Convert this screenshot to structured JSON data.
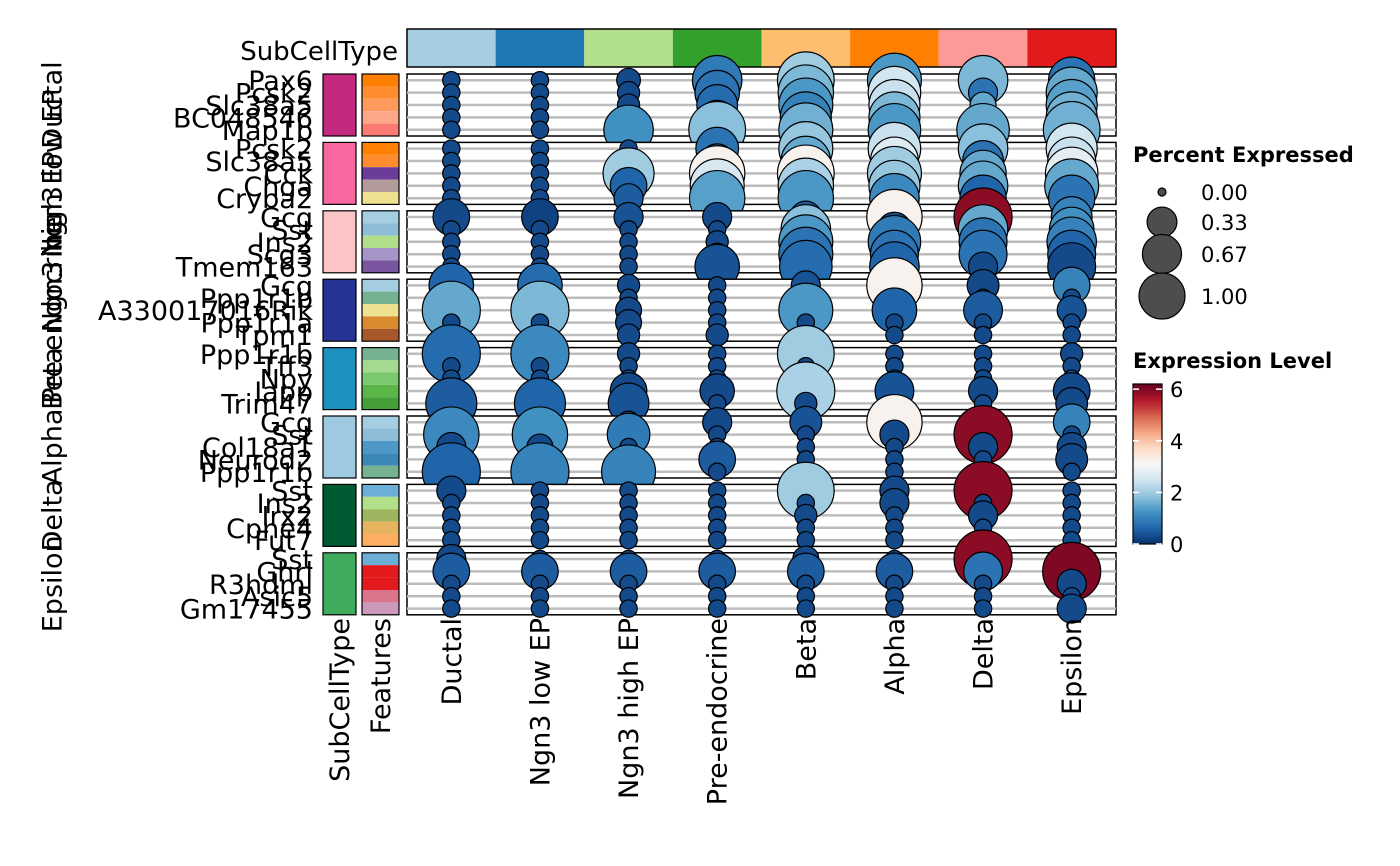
{
  "chart_data": {
    "type": "dotplot",
    "title": "",
    "xlabel": "",
    "ylabel": "",
    "top_annotation": {
      "label": "SubCellType",
      "colors": [
        "#A6CEE3",
        "#1F78B4",
        "#B2DF8A",
        "#33A02C",
        "#FDBF6F",
        "#FF7F00",
        "#FB9A99",
        "#E31A1C"
      ]
    },
    "columns": [
      "Ductal",
      "Ngn3 low EP",
      "Ngn3 high EP",
      "Pre-endocrine",
      "Beta",
      "Alpha",
      "Delta",
      "Epsilon"
    ],
    "left_annotations": {
      "labels": [
        "SubCellType",
        "Features"
      ]
    },
    "groups": [
      {
        "name": "Ductal",
        "color": "#C2297F",
        "features": [
          "Pax6",
          "Pcsk2",
          "Slc38a5",
          "BC048546",
          "Map1b"
        ],
        "feature_colors": [
          "#FF7F00",
          "#FF8C2E",
          "#FF9A5C",
          "#FCA68A",
          "#FB7B72"
        ],
        "pct": [
          [
            0.05,
            0.05,
            0.12,
            0.7,
            0.95,
            0.85,
            0.7,
            0.6
          ],
          [
            0.05,
            0.05,
            0.1,
            0.55,
            0.9,
            0.8,
            0.2,
            0.75
          ],
          [
            0.05,
            0.05,
            0.1,
            0.45,
            0.85,
            0.75,
            0.15,
            0.75
          ],
          [
            0.05,
            0.05,
            0.1,
            0.3,
            0.75,
            0.75,
            0.15,
            0.75
          ],
          [
            0.05,
            0.05,
            0.7,
            0.95,
            0.85,
            0.8,
            0.8,
            0.95
          ]
        ],
        "expr": [
          [
            0.3,
            0.3,
            0.3,
            0.9,
            2.0,
            1.3,
            1.7,
            0.8
          ],
          [
            0.3,
            0.3,
            0.3,
            0.8,
            1.7,
            2.5,
            0.8,
            1.5
          ],
          [
            0.3,
            0.3,
            0.3,
            0.7,
            1.3,
            2.4,
            1.5,
            1.4
          ],
          [
            0.3,
            0.3,
            0.3,
            0.4,
            1.0,
            1.7,
            1.4,
            1.6
          ],
          [
            0.3,
            0.3,
            1.2,
            1.8,
            1.6,
            1.3,
            1.5,
            1.6
          ]
        ]
      },
      {
        "name": "Ngn3 low EP",
        "color": "#F768A1",
        "features": [
          "Pcsk2",
          "Slc38a5",
          "Cck",
          "Chga",
          "Cryba2"
        ],
        "feature_colors": [
          "#FF7F00",
          "#FF8C2E",
          "#6A3D9A",
          "#B39B9B",
          "#EEE290"
        ],
        "pct": [
          [
            0.05,
            0.05,
            0.05,
            0.5,
            0.85,
            0.8,
            0.7,
            0.75
          ],
          [
            0.05,
            0.05,
            0.05,
            0.3,
            0.7,
            0.65,
            0.45,
            0.65
          ],
          [
            0.05,
            0.05,
            0.75,
            0.9,
            0.95,
            0.85,
            0.6,
            0.8
          ],
          [
            0.05,
            0.05,
            0.35,
            0.85,
            0.9,
            0.75,
            0.7,
            0.85
          ],
          [
            0.05,
            0.05,
            0.2,
            0.9,
            0.9,
            0.7,
            0.6,
            0.6
          ]
        ],
        "expr": [
          [
            0.3,
            0.3,
            0.3,
            0.8,
            1.9,
            2.4,
            1.8,
            2.5
          ],
          [
            0.3,
            0.3,
            0.3,
            0.6,
            1.5,
            2.7,
            0.8,
            2.4
          ],
          [
            0.3,
            0.3,
            2.0,
            3.2,
            3.2,
            2.0,
            1.5,
            2.8
          ],
          [
            0.3,
            0.3,
            0.6,
            2.6,
            2.1,
            1.9,
            1.5,
            1.5
          ],
          [
            0.3,
            0.3,
            0.5,
            1.4,
            1.3,
            1.1,
            0.6,
            0.8
          ]
        ]
      },
      {
        "name": "Ngn3 high EP",
        "color": "#FBC5C5",
        "features": [
          "Gcg",
          "Sst",
          "Ins2",
          "Scg3",
          "Tmem163"
        ],
        "feature_colors": [
          "#A6CEE3",
          "#8FBCD6",
          "#B2DF8A",
          "#A595C9",
          "#7A55A0"
        ],
        "pct": [
          [
            0.35,
            0.35,
            0.2,
            0.2,
            0.25,
            0.9,
            1.0,
            0.45
          ],
          [
            0.05,
            0.05,
            0.05,
            0.05,
            0.7,
            0.3,
            0.7,
            0.55
          ],
          [
            0.05,
            0.05,
            0.05,
            0.1,
            0.85,
            0.8,
            0.65,
            0.7
          ],
          [
            0.05,
            0.05,
            0.05,
            0.1,
            0.85,
            0.65,
            0.65,
            0.65
          ],
          [
            0.05,
            0.05,
            0.05,
            0.55,
            0.8,
            0.7,
            0.2,
            0.65
          ]
        ],
        "expr": [
          [
            0.3,
            0.2,
            0.4,
            0.3,
            0.5,
            3.2,
            5.9,
            1.0
          ],
          [
            0.3,
            0.3,
            0.3,
            0.3,
            1.8,
            0.3,
            1.5,
            1.2
          ],
          [
            0.3,
            0.3,
            0.3,
            0.3,
            1.3,
            0.9,
            0.8,
            1.0
          ],
          [
            0.3,
            0.3,
            0.3,
            0.3,
            0.8,
            0.8,
            0.8,
            0.6
          ],
          [
            0.3,
            0.3,
            0.3,
            0.4,
            0.7,
            0.6,
            0.3,
            0.3
          ]
        ]
      },
      {
        "name": "Pre-endocrine",
        "color": "#253494",
        "features": [
          "Gcg",
          "Ppp1r1b",
          "A330017016Rik",
          "Ppp1r1a",
          "Tpm1"
        ],
        "feature_colors": [
          "#A6CEE3",
          "#76B28F",
          "#EEE290",
          "#D98A2E",
          "#A6582A"
        ],
        "pct": [
          [
            0.55,
            0.55,
            0.1,
            0.05,
            0.2,
            0.9,
            0.25,
            0.35
          ],
          [
            0.05,
            0.05,
            0.05,
            0.05,
            0.05,
            0.05,
            0.05,
            0.05
          ],
          [
            1.0,
            1.0,
            0.15,
            0.05,
            0.85,
            0.55,
            0.4,
            0.2
          ],
          [
            0.05,
            0.05,
            0.15,
            0.05,
            0.05,
            0.05,
            0.05,
            0.05
          ],
          [
            0.05,
            0.05,
            0.1,
            0.1,
            0.05,
            0.05,
            0.05,
            0.05
          ]
        ],
        "expr": [
          [
            0.6,
            0.7,
            0.3,
            0.3,
            0.4,
            3.2,
            0.3,
            1.0
          ],
          [
            0.3,
            0.3,
            0.3,
            0.3,
            0.3,
            0.3,
            0.3,
            0.3
          ],
          [
            1.5,
            1.7,
            0.3,
            0.3,
            1.3,
            0.6,
            0.5,
            0.4
          ],
          [
            0.3,
            0.3,
            0.3,
            0.3,
            0.3,
            0.3,
            0.3,
            0.3
          ],
          [
            0.3,
            0.3,
            0.3,
            0.3,
            0.3,
            0.3,
            0.3,
            0.3
          ]
        ]
      },
      {
        "name": "Beta",
        "color": "#1D91C0",
        "features": [
          "Ppp1r1b",
          "Tff3",
          "Npy",
          "Iapp",
          "Trim47"
        ],
        "feature_colors": [
          "#76B28F",
          "#A3D991",
          "#7BC96F",
          "#5CB548",
          "#45A03A"
        ],
        "pct": [
          [
            1.0,
            1.0,
            0.1,
            0.05,
            0.95,
            0.05,
            0.05,
            0.1
          ],
          [
            0.05,
            0.05,
            0.05,
            0.05,
            0.05,
            0.05,
            0.05,
            0.05
          ],
          [
            0.05,
            0.05,
            0.05,
            0.05,
            0.05,
            0.05,
            0.05,
            0.05
          ],
          [
            0.05,
            0.05,
            0.35,
            0.3,
            1.0,
            0.4,
            0.2,
            0.35
          ],
          [
            0.75,
            0.75,
            0.45,
            0.05,
            0.1,
            0.05,
            0.05,
            0.25
          ]
        ],
        "expr": [
          [
            0.7,
            1.1,
            0.3,
            0.3,
            2.0,
            0.3,
            0.3,
            0.3
          ],
          [
            0.3,
            0.3,
            0.3,
            0.3,
            0.3,
            0.3,
            0.3,
            0.3
          ],
          [
            0.3,
            0.3,
            0.3,
            0.3,
            0.3,
            0.3,
            0.3,
            0.3
          ],
          [
            0.3,
            0.3,
            0.3,
            0.3,
            2.1,
            0.4,
            0.3,
            0.3
          ],
          [
            0.5,
            0.6,
            0.4,
            0.3,
            0.3,
            0.3,
            0.3,
            0.3
          ]
        ]
      },
      {
        "name": "Alpha",
        "color": "#9ECAE1",
        "features": [
          "Gcg",
          "Sst",
          "Col18a1",
          "Neurod2",
          "Ppp1r1b"
        ],
        "feature_colors": [
          "#A6CEE3",
          "#8FBCD6",
          "#4E98C8",
          "#3A87B8",
          "#76B28F"
        ],
        "pct": [
          [
            0.1,
            0.1,
            0.1,
            0.2,
            0.25,
            0.9,
            0.05,
            0.35
          ],
          [
            0.9,
            0.9,
            0.5,
            0.05,
            0.05,
            0.2,
            1.0,
            0.05
          ],
          [
            0.2,
            0.15,
            0.05,
            0.05,
            0.05,
            0.05,
            0.2,
            0.2
          ],
          [
            0.05,
            0.05,
            0.05,
            0.35,
            0.05,
            0.05,
            0.05,
            0.25
          ],
          [
            1.0,
            1.0,
            0.85,
            0.05,
            0.05,
            0.05,
            0.05,
            0.05
          ]
        ],
        "expr": [
          [
            0.3,
            0.3,
            0.3,
            0.3,
            0.4,
            3.2,
            0.3,
            1.0
          ],
          [
            1.1,
            1.2,
            0.9,
            0.3,
            0.3,
            0.3,
            5.9,
            0.3
          ],
          [
            0.3,
            0.3,
            0.3,
            0.3,
            0.3,
            0.3,
            0.3,
            0.3
          ],
          [
            0.3,
            0.3,
            0.3,
            0.5,
            0.3,
            0.3,
            0.3,
            0.3
          ],
          [
            0.6,
            1.0,
            1.0,
            0.3,
            0.3,
            0.3,
            0.3,
            0.3
          ]
        ]
      },
      {
        "name": "Delta",
        "color": "#005A32",
        "features": [
          "Sst",
          "Ins2",
          "Irx2",
          "Cpne4",
          "Fut7"
        ],
        "feature_colors": [
          "#6BAED6",
          "#B2DF8A",
          "#9DB55E",
          "#E6B35E",
          "#FDAE61"
        ],
        "pct": [
          [
            0.2,
            0.05,
            0.05,
            0.05,
            0.95,
            0.2,
            1.0,
            0.05
          ],
          [
            0.05,
            0.05,
            0.05,
            0.05,
            0.05,
            0.2,
            0.05,
            0.05
          ],
          [
            0.05,
            0.05,
            0.05,
            0.05,
            0.1,
            0.05,
            0.2,
            0.05
          ],
          [
            0.05,
            0.05,
            0.05,
            0.05,
            0.05,
            0.05,
            0.05,
            0.05
          ],
          [
            0.05,
            0.05,
            0.05,
            0.05,
            0.05,
            0.05,
            0.05,
            0.05
          ]
        ],
        "expr": [
          [
            0.3,
            0.3,
            0.3,
            0.3,
            2.0,
            0.3,
            5.9,
            0.3
          ],
          [
            0.3,
            0.3,
            0.3,
            0.3,
            0.3,
            0.3,
            0.3,
            0.3
          ],
          [
            0.3,
            0.3,
            0.3,
            0.3,
            0.3,
            0.3,
            0.3,
            0.3
          ],
          [
            0.3,
            0.3,
            0.3,
            0.3,
            0.3,
            0.3,
            0.3,
            0.3
          ],
          [
            0.3,
            0.3,
            0.3,
            0.3,
            0.3,
            0.3,
            0.3,
            0.3
          ]
        ]
      },
      {
        "name": "Epsilon",
        "color": "#41AB5D",
        "features": [
          "Sst",
          "Ghrl",
          "R3hdml",
          "Asic5",
          "Gm17455"
        ],
        "feature_colors": [
          "#6BAED6",
          "#E31A1C",
          "#E31A1C",
          "#D9748A",
          "#CC99BB"
        ],
        "pct": [
          [
            0.2,
            0.05,
            0.05,
            0.05,
            0.15,
            0.05,
            1.0,
            0.05
          ],
          [
            0.35,
            0.35,
            0.35,
            0.35,
            0.35,
            0.35,
            0.4,
            1.0
          ],
          [
            0.05,
            0.05,
            0.05,
            0.05,
            0.05,
            0.05,
            0.05,
            0.2
          ],
          [
            0.05,
            0.05,
            0.05,
            0.05,
            0.05,
            0.05,
            0.05,
            0.05
          ],
          [
            0.05,
            0.05,
            0.05,
            0.05,
            0.05,
            0.05,
            0.05,
            0.2
          ]
        ],
        "expr": [
          [
            0.3,
            0.3,
            0.3,
            0.3,
            0.3,
            0.3,
            5.9,
            0.3
          ],
          [
            0.5,
            0.5,
            0.5,
            0.5,
            0.5,
            0.5,
            0.8,
            6.0
          ],
          [
            0.3,
            0.3,
            0.3,
            0.3,
            0.3,
            0.3,
            0.3,
            0.3
          ],
          [
            0.3,
            0.3,
            0.3,
            0.3,
            0.3,
            0.3,
            0.3,
            0.3
          ],
          [
            0.3,
            0.3,
            0.3,
            0.3,
            0.3,
            0.3,
            0.3,
            0.3
          ]
        ]
      }
    ],
    "legend_size": {
      "title": "Percent Expressed",
      "values": [
        0.0,
        0.33,
        0.67,
        1.0
      ],
      "labels": [
        "0.00",
        "0.33",
        "0.67",
        "1.00"
      ]
    },
    "legend_color": {
      "title": "Expression Level",
      "range": [
        0,
        6.2
      ],
      "ticks": [
        0,
        2,
        4,
        6
      ],
      "tick_labels": [
        "0",
        "2",
        "4",
        "6"
      ],
      "palette": [
        "#08306B",
        "#2166AC",
        "#4393C3",
        "#92C5DE",
        "#D1E5F0",
        "#F7F7F7",
        "#FDDBC7",
        "#F4A582",
        "#D6604D",
        "#B2182B",
        "#67001F"
      ]
    }
  }
}
